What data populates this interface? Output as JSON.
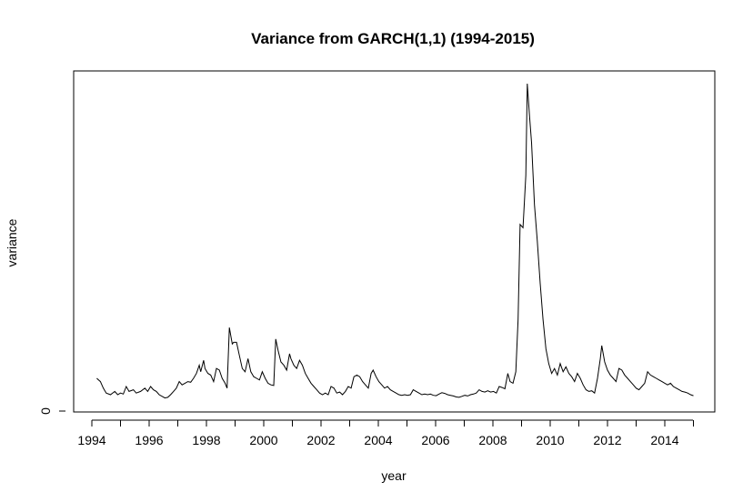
{
  "chart_data": {
    "type": "line",
    "title": "Variance from GARCH(1,1) (1994-2015)",
    "xlabel": "year",
    "ylabel": "variance",
    "xlim": [
      1993.35,
      1995.0
    ],
    "x_ticks": [
      1994,
      1996,
      1998,
      2000,
      2002,
      2004,
      2006,
      2008,
      2010,
      2012,
      2014
    ],
    "x_minor_ticks": [
      1995,
      1997,
      1999,
      2001,
      2003,
      2005,
      2007,
      2009,
      2011,
      2013,
      2015
    ],
    "y_ticks": [
      0
    ],
    "ylim": [
      0,
      100
    ],
    "grid": false,
    "series": [
      {
        "points": [
          [
            1994.17,
            10
          ],
          [
            1994.3,
            9
          ],
          [
            1994.4,
            7
          ],
          [
            1994.5,
            5.5
          ],
          [
            1994.65,
            5
          ],
          [
            1994.8,
            6
          ],
          [
            1994.9,
            5
          ],
          [
            1995.0,
            5.5
          ],
          [
            1995.1,
            5.2
          ],
          [
            1995.2,
            7.5
          ],
          [
            1995.3,
            6
          ],
          [
            1995.45,
            6.5
          ],
          [
            1995.55,
            5.5
          ],
          [
            1995.7,
            6
          ],
          [
            1995.85,
            7
          ],
          [
            1995.95,
            6
          ],
          [
            1996.05,
            7.5
          ],
          [
            1996.15,
            6.5
          ],
          [
            1996.25,
            6
          ],
          [
            1996.35,
            5
          ],
          [
            1996.45,
            4.5
          ],
          [
            1996.55,
            4
          ],
          [
            1996.65,
            4.2
          ],
          [
            1996.75,
            5
          ],
          [
            1996.85,
            6
          ],
          [
            1996.95,
            7
          ],
          [
            1997.05,
            9
          ],
          [
            1997.15,
            8
          ],
          [
            1997.25,
            8.5
          ],
          [
            1997.35,
            9
          ],
          [
            1997.45,
            8.8
          ],
          [
            1997.55,
            10
          ],
          [
            1997.65,
            11.5
          ],
          [
            1997.75,
            14
          ],
          [
            1997.8,
            12
          ],
          [
            1997.9,
            15.5
          ],
          [
            1997.95,
            13
          ],
          [
            1998.05,
            11.5
          ],
          [
            1998.15,
            11
          ],
          [
            1998.25,
            9
          ],
          [
            1998.35,
            13
          ],
          [
            1998.45,
            12.5
          ],
          [
            1998.55,
            10
          ],
          [
            1998.65,
            8.5
          ],
          [
            1998.72,
            7
          ],
          [
            1998.8,
            25.5
          ],
          [
            1998.9,
            20.5
          ],
          [
            1998.95,
            21
          ],
          [
            1999.05,
            21
          ],
          [
            1999.15,
            17
          ],
          [
            1999.25,
            13
          ],
          [
            1999.35,
            12
          ],
          [
            1999.45,
            16
          ],
          [
            1999.55,
            12
          ],
          [
            1999.65,
            10.5
          ],
          [
            1999.75,
            10
          ],
          [
            1999.85,
            9.5
          ],
          [
            1999.95,
            12
          ],
          [
            2000.05,
            10
          ],
          [
            2000.15,
            8.5
          ],
          [
            2000.25,
            8
          ],
          [
            2000.35,
            7.8
          ],
          [
            2000.42,
            22
          ],
          [
            2000.5,
            18.5
          ],
          [
            2000.6,
            15
          ],
          [
            2000.7,
            14
          ],
          [
            2000.8,
            12.5
          ],
          [
            2000.9,
            17.5
          ],
          [
            2000.95,
            16
          ],
          [
            2001.05,
            14
          ],
          [
            2001.15,
            13
          ],
          [
            2001.25,
            15.5
          ],
          [
            2001.35,
            14
          ],
          [
            2001.45,
            11.5
          ],
          [
            2001.55,
            10
          ],
          [
            2001.65,
            8.5
          ],
          [
            2001.75,
            7.5
          ],
          [
            2001.85,
            6.5
          ],
          [
            2001.95,
            5.5
          ],
          [
            2002.05,
            5
          ],
          [
            2002.15,
            5.5
          ],
          [
            2002.25,
            5
          ],
          [
            2002.35,
            7.5
          ],
          [
            2002.45,
            7
          ],
          [
            2002.55,
            5.5
          ],
          [
            2002.65,
            5.8
          ],
          [
            2002.75,
            5
          ],
          [
            2002.85,
            6
          ],
          [
            2002.95,
            7.5
          ],
          [
            2003.05,
            7
          ],
          [
            2003.15,
            10.5
          ],
          [
            2003.25,
            11
          ],
          [
            2003.35,
            10.5
          ],
          [
            2003.45,
            9
          ],
          [
            2003.55,
            8
          ],
          [
            2003.65,
            7
          ],
          [
            2003.75,
            11.5
          ],
          [
            2003.82,
            12.5
          ],
          [
            2003.92,
            10.5
          ],
          [
            2004.02,
            9
          ],
          [
            2004.12,
            8
          ],
          [
            2004.22,
            7
          ],
          [
            2004.32,
            7.5
          ],
          [
            2004.42,
            6.5
          ],
          [
            2004.52,
            6
          ],
          [
            2004.62,
            5.5
          ],
          [
            2004.72,
            5
          ],
          [
            2004.82,
            4.8
          ],
          [
            2004.92,
            5
          ],
          [
            2005.02,
            4.8
          ],
          [
            2005.12,
            5
          ],
          [
            2005.22,
            6.5
          ],
          [
            2005.32,
            6
          ],
          [
            2005.42,
            5.5
          ],
          [
            2005.52,
            5
          ],
          [
            2005.62,
            5.2
          ],
          [
            2005.72,
            5
          ],
          [
            2005.82,
            5.2
          ],
          [
            2005.92,
            4.8
          ],
          [
            2006.02,
            4.7
          ],
          [
            2006.12,
            5.2
          ],
          [
            2006.22,
            5.6
          ],
          [
            2006.32,
            5.4
          ],
          [
            2006.42,
            5
          ],
          [
            2006.52,
            4.8
          ],
          [
            2006.62,
            4.6
          ],
          [
            2006.72,
            4.3
          ],
          [
            2006.82,
            4.2
          ],
          [
            2006.92,
            4.5
          ],
          [
            2007.02,
            4.8
          ],
          [
            2007.12,
            4.6
          ],
          [
            2007.22,
            5
          ],
          [
            2007.32,
            5.2
          ],
          [
            2007.42,
            5.5
          ],
          [
            2007.52,
            6.5
          ],
          [
            2007.62,
            6
          ],
          [
            2007.72,
            5.8
          ],
          [
            2007.82,
            6.2
          ],
          [
            2007.92,
            5.8
          ],
          [
            2008.02,
            6
          ],
          [
            2008.12,
            5.5
          ],
          [
            2008.22,
            7.5
          ],
          [
            2008.32,
            7.2
          ],
          [
            2008.42,
            6.8
          ],
          [
            2008.52,
            11.5
          ],
          [
            2008.6,
            9
          ],
          [
            2008.7,
            8.5
          ],
          [
            2008.8,
            12
          ],
          [
            2008.88,
            28
          ],
          [
            2008.95,
            57
          ],
          [
            2009.05,
            56
          ],
          [
            2009.15,
            72
          ],
          [
            2009.2,
            100
          ],
          [
            2009.28,
            90
          ],
          [
            2009.35,
            82
          ],
          [
            2009.45,
            63
          ],
          [
            2009.55,
            52
          ],
          [
            2009.65,
            39
          ],
          [
            2009.75,
            28
          ],
          [
            2009.85,
            19
          ],
          [
            2009.95,
            14.5
          ],
          [
            2010.05,
            11.5
          ],
          [
            2010.15,
            13
          ],
          [
            2010.25,
            11
          ],
          [
            2010.35,
            14.5
          ],
          [
            2010.45,
            12
          ],
          [
            2010.55,
            13.5
          ],
          [
            2010.65,
            11.5
          ],
          [
            2010.75,
            10.5
          ],
          [
            2010.85,
            9
          ],
          [
            2010.95,
            11.5
          ],
          [
            2011.05,
            10
          ],
          [
            2011.15,
            8
          ],
          [
            2011.25,
            6.5
          ],
          [
            2011.35,
            6
          ],
          [
            2011.45,
            6.2
          ],
          [
            2011.55,
            5.5
          ],
          [
            2011.65,
            10
          ],
          [
            2011.75,
            16
          ],
          [
            2011.8,
            20
          ],
          [
            2011.9,
            15
          ],
          [
            2012.0,
            12.5
          ],
          [
            2012.1,
            11
          ],
          [
            2012.2,
            10
          ],
          [
            2012.3,
            9
          ],
          [
            2012.4,
            13
          ],
          [
            2012.5,
            12.5
          ],
          [
            2012.6,
            11
          ],
          [
            2012.7,
            10
          ],
          [
            2012.8,
            9
          ],
          [
            2012.9,
            8
          ],
          [
            2013.0,
            7
          ],
          [
            2013.1,
            6.5
          ],
          [
            2013.2,
            7.5
          ],
          [
            2013.3,
            8.5
          ],
          [
            2013.4,
            12
          ],
          [
            2013.5,
            11
          ],
          [
            2013.6,
            10.5
          ],
          [
            2013.7,
            10
          ],
          [
            2013.8,
            9.5
          ],
          [
            2013.9,
            9
          ],
          [
            2014.0,
            8.5
          ],
          [
            2014.1,
            8
          ],
          [
            2014.2,
            8.5
          ],
          [
            2014.3,
            7.5
          ],
          [
            2014.4,
            7
          ],
          [
            2014.5,
            6.5
          ],
          [
            2014.6,
            6
          ],
          [
            2014.7,
            5.8
          ],
          [
            2014.8,
            5.5
          ],
          [
            2014.9,
            5
          ],
          [
            2015.0,
            4.7
          ]
        ]
      }
    ]
  }
}
